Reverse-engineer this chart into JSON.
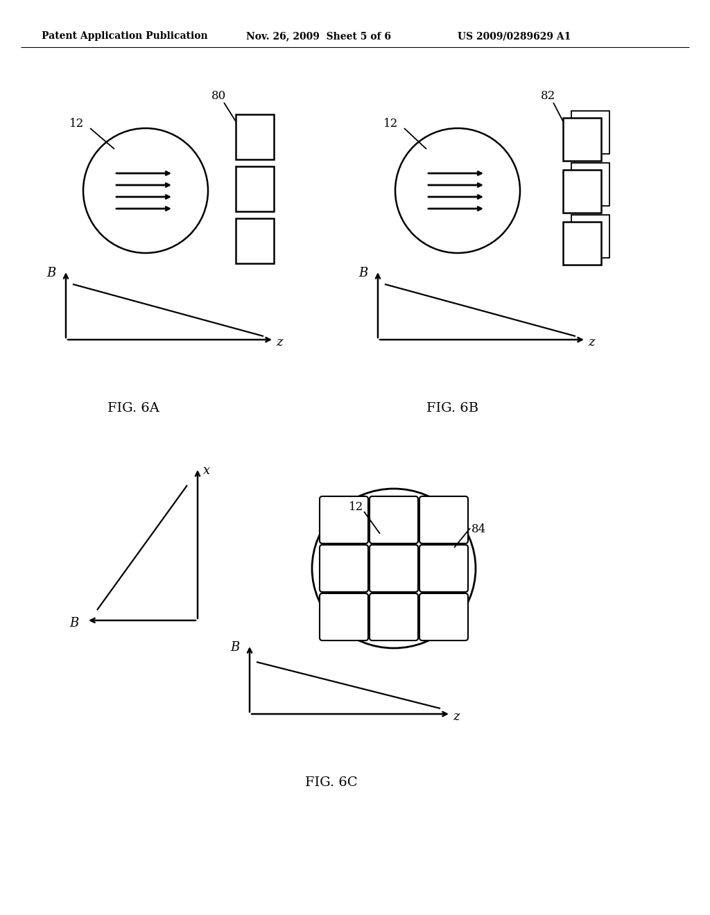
{
  "bg_color": "#ffffff",
  "header_text": "Patent Application Publication",
  "header_date": "Nov. 26, 2009  Sheet 5 of 6",
  "header_patent": "US 2009/0289629 A1",
  "fig6a_label": "FIG. 6A",
  "fig6b_label": "FIG. 6B",
  "fig6c_label": "FIG. 6C",
  "font_color": "#000000"
}
